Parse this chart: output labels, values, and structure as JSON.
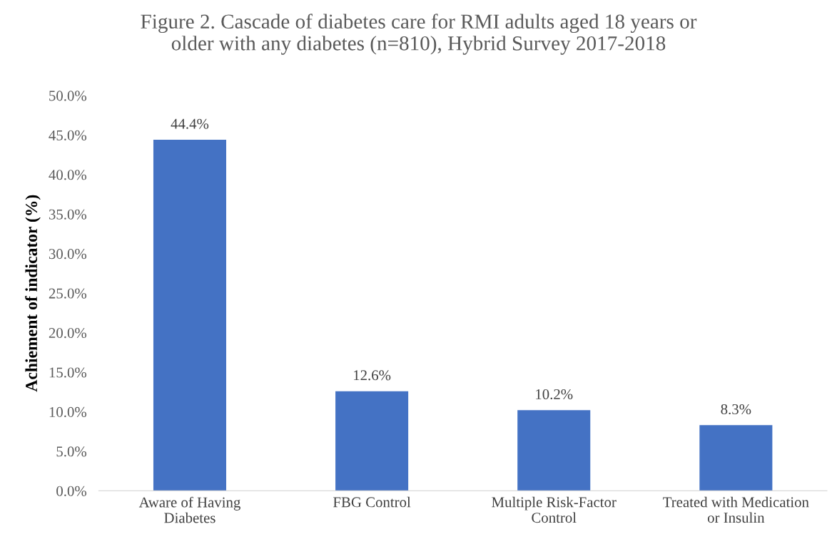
{
  "chart_data": {
    "type": "bar",
    "title": "Figure 2. Cascade of diabetes care for RMI adults aged 18 years or\nolder with any diabetes (n=810), Hybrid Survey 2017-2018",
    "ylabel": "Achiement of indicator (%)",
    "categories": [
      "Aware of Having\nDiabetes",
      "FBG Control",
      "Multiple Risk-Factor\nControl",
      "Treated with Medication\nor Insulin"
    ],
    "values": [
      44.4,
      12.6,
      10.2,
      8.3
    ],
    "value_labels": [
      "44.4%",
      "12.6%",
      "10.2%",
      "8.3%"
    ],
    "color": "#4472c4",
    "ylim": [
      0,
      50
    ],
    "yticks": [
      {
        "value": 0,
        "label": "0.0%"
      },
      {
        "value": 5,
        "label": "5.0%"
      },
      {
        "value": 10,
        "label": "10.0%"
      },
      {
        "value": 15,
        "label": "15.0%"
      },
      {
        "value": 20,
        "label": "20.0%"
      },
      {
        "value": 25,
        "label": "25.0%"
      },
      {
        "value": 30,
        "label": "30.0%"
      },
      {
        "value": 35,
        "label": "35.0%"
      },
      {
        "value": 40,
        "label": "40.0%"
      },
      {
        "value": 45,
        "label": "45.0%"
      },
      {
        "value": 50,
        "label": "50.0%"
      }
    ],
    "grid": false,
    "legend": false
  }
}
